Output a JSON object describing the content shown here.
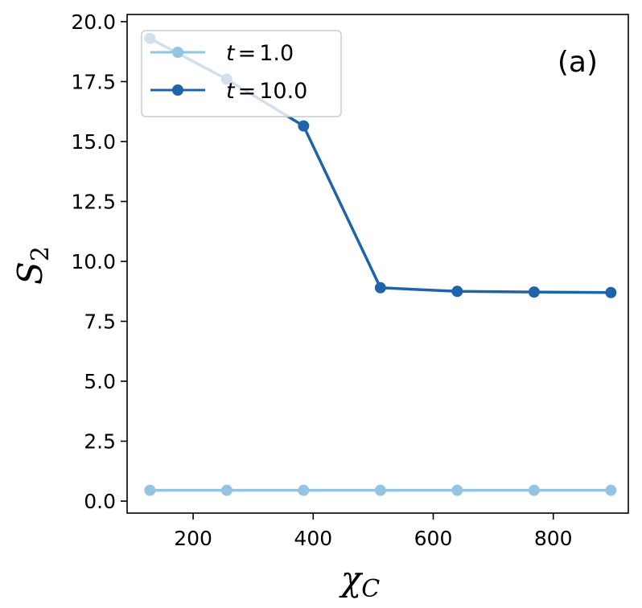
{
  "chart_data": {
    "type": "line",
    "title": "",
    "xlabel": "χ",
    "xlabel_sub": "C",
    "ylabel": "S",
    "ylabel_sub": "2",
    "panel_label": "(a)",
    "xlim": [
      90,
      925
    ],
    "ylim": [
      -0.5,
      20.3
    ],
    "x_ticks": [
      200,
      400,
      600,
      800
    ],
    "y_ticks": [
      0.0,
      2.5,
      5.0,
      7.5,
      10.0,
      12.5,
      15.0,
      17.5,
      20.0
    ],
    "x_tick_labels": [
      "200",
      "400",
      "600",
      "800"
    ],
    "y_tick_labels": [
      "0.0",
      "2.5",
      "5.0",
      "7.5",
      "10.0",
      "12.5",
      "15.0",
      "17.5",
      "20.0"
    ],
    "grid": false,
    "legend_position": "top-left",
    "x": [
      128,
      256,
      384,
      512,
      640,
      768,
      896
    ],
    "series": [
      {
        "name_var": "t",
        "name_value": "1.0",
        "color": "#94c4df",
        "values": [
          0.45,
          0.45,
          0.45,
          0.45,
          0.45,
          0.45,
          0.45
        ]
      },
      {
        "name_var": "t",
        "name_value": "10.0",
        "color": "#1f63a8",
        "values": [
          19.3,
          17.6,
          15.65,
          8.9,
          8.75,
          8.72,
          8.7
        ]
      }
    ]
  }
}
